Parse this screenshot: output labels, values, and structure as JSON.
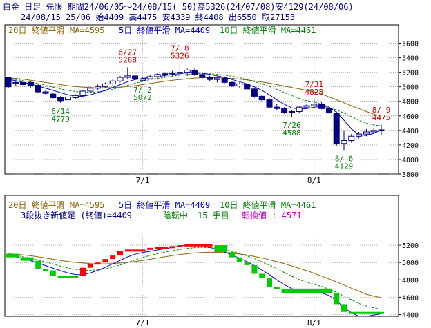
{
  "header": {
    "line1": "白金 日足 先限 期間24/06/05～24/08/15( 50)高5326(24/07/08)安4129(24/08/06)",
    "line2": "24/08/15 25/06 始4409 高4475 安4339 終4408 出6550 取27153"
  },
  "colors": {
    "ma20": "#8b6508",
    "ma5": "#0000cc",
    "ma10": "#008000",
    "candle_down": "#000080",
    "label_high": "#cc0000",
    "label_low": "#008000",
    "brick_up": "#ff0000",
    "brick_down": "#00cc00",
    "grid": "#808080",
    "panel_border": "#000000"
  },
  "chart_data": [
    {
      "type": "candlestick",
      "legend": {
        "ma20": "20日 終値平滑 MA=4595",
        "ma5": "5日 終値平滑 MA=4409",
        "ma10": "10日 終値平滑 MA=4461"
      },
      "ylim": [
        3800,
        5700
      ],
      "yticks": [
        3800,
        4000,
        4200,
        4400,
        4600,
        4800,
        5000,
        5200,
        5400,
        5600
      ],
      "xtick_labels": [
        {
          "index": 18,
          "label": "7/1"
        },
        {
          "index": 41,
          "label": "8/1"
        }
      ],
      "candles": [
        {
          "o": 5130,
          "h": 5135,
          "l": 4980,
          "c": 5000
        },
        {
          "o": 5050,
          "h": 5080,
          "l": 5010,
          "c": 5060
        },
        {
          "o": 5060,
          "h": 5070,
          "l": 5010,
          "c": 5030
        },
        {
          "o": 5060,
          "h": 5070,
          "l": 4990,
          "c": 5020
        },
        {
          "o": 5020,
          "h": 5040,
          "l": 4920,
          "c": 4930
        },
        {
          "o": 4930,
          "h": 4960,
          "l": 4890,
          "c": 4910
        },
        {
          "o": 4900,
          "h": 4920,
          "l": 4840,
          "c": 4850
        },
        {
          "o": 4850,
          "h": 4870,
          "l": 4779,
          "c": 4810
        },
        {
          "o": 4820,
          "h": 4870,
          "l": 4800,
          "c": 4860
        },
        {
          "o": 4850,
          "h": 4900,
          "l": 4830,
          "c": 4880
        },
        {
          "o": 4880,
          "h": 4960,
          "l": 4870,
          "c": 4940
        },
        {
          "o": 4940,
          "h": 5000,
          "l": 4920,
          "c": 4980
        },
        {
          "o": 4980,
          "h": 5030,
          "l": 4960,
          "c": 5000
        },
        {
          "o": 5000,
          "h": 5060,
          "l": 4980,
          "c": 5040
        },
        {
          "o": 5040,
          "h": 5100,
          "l": 5020,
          "c": 5080
        },
        {
          "o": 5080,
          "h": 5150,
          "l": 5060,
          "c": 5130
        },
        {
          "o": 5130,
          "h": 5268,
          "l": 5100,
          "c": 5150
        },
        {
          "o": 5150,
          "h": 5200,
          "l": 5090,
          "c": 5110
        },
        {
          "o": 5090,
          "h": 5130,
          "l": 5072,
          "c": 5110
        },
        {
          "o": 5110,
          "h": 5160,
          "l": 5100,
          "c": 5140
        },
        {
          "o": 5140,
          "h": 5190,
          "l": 5120,
          "c": 5170
        },
        {
          "o": 5170,
          "h": 5200,
          "l": 5140,
          "c": 5180
        },
        {
          "o": 5180,
          "h": 5220,
          "l": 5150,
          "c": 5190
        },
        {
          "o": 5190,
          "h": 5326,
          "l": 5170,
          "c": 5200
        },
        {
          "o": 5200,
          "h": 5250,
          "l": 5150,
          "c": 5230
        },
        {
          "o": 5230,
          "h": 5260,
          "l": 5150,
          "c": 5170
        },
        {
          "o": 5170,
          "h": 5200,
          "l": 5100,
          "c": 5130
        },
        {
          "o": 5130,
          "h": 5150,
          "l": 5080,
          "c": 5100
        },
        {
          "o": 5100,
          "h": 5140,
          "l": 5060,
          "c": 5120
        },
        {
          "o": 5120,
          "h": 5140,
          "l": 5050,
          "c": 5060
        },
        {
          "o": 5060,
          "h": 5080,
          "l": 5000,
          "c": 5010
        },
        {
          "o": 5010,
          "h": 5060,
          "l": 4990,
          "c": 5040
        },
        {
          "o": 5040,
          "h": 5050,
          "l": 4960,
          "c": 4970
        },
        {
          "o": 4970,
          "h": 4990,
          "l": 4850,
          "c": 4870
        },
        {
          "o": 4870,
          "h": 4900,
          "l": 4800,
          "c": 4820
        },
        {
          "o": 4820,
          "h": 4840,
          "l": 4700,
          "c": 4720
        },
        {
          "o": 4720,
          "h": 4760,
          "l": 4680,
          "c": 4700
        },
        {
          "o": 4700,
          "h": 4720,
          "l": 4630,
          "c": 4650
        },
        {
          "o": 4650,
          "h": 4680,
          "l": 4588,
          "c": 4660
        },
        {
          "o": 4660,
          "h": 4730,
          "l": 4640,
          "c": 4720
        },
        {
          "o": 4720,
          "h": 4770,
          "l": 4700,
          "c": 4740
        },
        {
          "o": 4740,
          "h": 4828,
          "l": 4720,
          "c": 4760
        },
        {
          "o": 4760,
          "h": 4790,
          "l": 4690,
          "c": 4700
        },
        {
          "o": 4700,
          "h": 4720,
          "l": 4620,
          "c": 4640
        },
        {
          "o": 4640,
          "h": 4660,
          "l": 4180,
          "c": 4220
        },
        {
          "o": 4220,
          "h": 4400,
          "l": 4129,
          "c": 4260
        },
        {
          "o": 4260,
          "h": 4350,
          "l": 4230,
          "c": 4320
        },
        {
          "o": 4320,
          "h": 4380,
          "l": 4290,
          "c": 4350
        },
        {
          "o": 4350,
          "h": 4420,
          "l": 4320,
          "c": 4380
        },
        {
          "o": 4380,
          "h": 4430,
          "l": 4360,
          "c": 4400
        },
        {
          "o": 4400,
          "h": 4475,
          "l": 4339,
          "c": 4408
        }
      ],
      "ma20_values": [
        5120,
        5115,
        5105,
        5090,
        5075,
        5060,
        5045,
        5030,
        5015,
        5005,
        4995,
        4990,
        4985,
        4985,
        4990,
        4995,
        5005,
        5015,
        5030,
        5045,
        5060,
        5075,
        5090,
        5100,
        5110,
        5120,
        5125,
        5125,
        5125,
        5120,
        5115,
        5105,
        5095,
        5080,
        5065,
        5050,
        5030,
        5010,
        4990,
        4970,
        4950,
        4930,
        4900,
        4860,
        4820,
        4780,
        4740,
        4700,
        4660,
        4625,
        4595
      ],
      "ma5_values": [
        5100,
        5085,
        5060,
        5040,
        5010,
        4980,
        4950,
        4920,
        4890,
        4870,
        4870,
        4890,
        4920,
        4950,
        4990,
        5030,
        5070,
        5100,
        5115,
        5130,
        5140,
        5155,
        5170,
        5180,
        5195,
        5200,
        5190,
        5170,
        5150,
        5130,
        5100,
        5070,
        5040,
        5000,
        4950,
        4890,
        4820,
        4760,
        4710,
        4690,
        4700,
        4720,
        4730,
        4720,
        4650,
        4540,
        4420,
        4340,
        4330,
        4360,
        4409
      ],
      "ma10_values": [
        5110,
        5100,
        5085,
        5065,
        5045,
        5020,
        4995,
        4970,
        4950,
        4935,
        4925,
        4925,
        4930,
        4945,
        4965,
        4990,
        5020,
        5050,
        5075,
        5100,
        5115,
        5130,
        5145,
        5160,
        5170,
        5180,
        5185,
        5180,
        5170,
        5160,
        5145,
        5125,
        5100,
        5070,
        5040,
        5005,
        4965,
        4920,
        4880,
        4840,
        4810,
        4790,
        4760,
        4720,
        4680,
        4640,
        4590,
        4540,
        4500,
        4475,
        4461
      ],
      "annotations": [
        {
          "index": 7,
          "value": 4779,
          "date": "6/14",
          "price": "4779",
          "kind": "low"
        },
        {
          "index": 16,
          "value": 5268,
          "date": "6/27",
          "price": "5268",
          "kind": "high"
        },
        {
          "index": 18,
          "value": 5072,
          "date": "7/ 2",
          "price": "5072",
          "kind": "low"
        },
        {
          "index": 23,
          "value": 5326,
          "date": "7/ 8",
          "price": "5326",
          "kind": "high"
        },
        {
          "index": 38,
          "value": 4588,
          "date": "7/26",
          "price": "4588",
          "kind": "low"
        },
        {
          "index": 41,
          "value": 4828,
          "date": "7/31",
          "price": "4828",
          "kind": "high"
        },
        {
          "index": 45,
          "value": 4129,
          "date": "8/ 6",
          "price": "4129",
          "kind": "low"
        },
        {
          "index": 50,
          "value": 4475,
          "date": "8/ 9",
          "price": "4475",
          "kind": "high"
        }
      ]
    },
    {
      "type": "three-line-break",
      "legend": {
        "ma20": "20日 終値平滑 MA=4595",
        "ma5": "5日 終値平滑 MA=4409",
        "ma10": "10日 終値平滑 MA=4461",
        "title": "3段抜き新値足 (終値)=4409",
        "trend": "陰転中",
        "steps": "15 手目",
        "reversal": "転換値 : 4571"
      },
      "ylim": [
        4380,
        5320
      ],
      "yticks": [
        4400,
        4600,
        4800,
        5000,
        5200
      ],
      "xtick_labels": [
        {
          "index": 18,
          "label": "7/1"
        },
        {
          "index": 41,
          "label": "8/1"
        }
      ],
      "bricks": [
        {
          "s": 0,
          "e": 2,
          "top": 5100,
          "bot": 5060,
          "dir": "down"
        },
        {
          "s": 2,
          "e": 4,
          "top": 5060,
          "bot": 5020,
          "dir": "down"
        },
        {
          "s": 4,
          "e": 5,
          "top": 5020,
          "bot": 4930,
          "dir": "down"
        },
        {
          "s": 5,
          "e": 6,
          "top": 4930,
          "bot": 4910,
          "dir": "down"
        },
        {
          "s": 6,
          "e": 7,
          "top": 4910,
          "bot": 4850,
          "dir": "down"
        },
        {
          "s": 7,
          "e": 10,
          "top": 4850,
          "bot": 4835,
          "dir": "down"
        },
        {
          "s": 10,
          "e": 11,
          "top": 4940,
          "bot": 4850,
          "dir": "up"
        },
        {
          "s": 11,
          "e": 12,
          "top": 4980,
          "bot": 4940,
          "dir": "up"
        },
        {
          "s": 12,
          "e": 13,
          "top": 5000,
          "bot": 4980,
          "dir": "up"
        },
        {
          "s": 13,
          "e": 14,
          "top": 5040,
          "bot": 5000,
          "dir": "up"
        },
        {
          "s": 14,
          "e": 15,
          "top": 5080,
          "bot": 5040,
          "dir": "up"
        },
        {
          "s": 15,
          "e": 16,
          "top": 5130,
          "bot": 5080,
          "dir": "up"
        },
        {
          "s": 16,
          "e": 19,
          "top": 5150,
          "bot": 5130,
          "dir": "up"
        },
        {
          "s": 19,
          "e": 20,
          "top": 5170,
          "bot": 5150,
          "dir": "up"
        },
        {
          "s": 20,
          "e": 22,
          "top": 5180,
          "bot": 5170,
          "dir": "up"
        },
        {
          "s": 22,
          "e": 23,
          "top": 5190,
          "bot": 5180,
          "dir": "up"
        },
        {
          "s": 23,
          "e": 24,
          "top": 5200,
          "bot": 5190,
          "dir": "up"
        },
        {
          "s": 24,
          "e": 28,
          "top": 5210,
          "bot": 5200,
          "dir": "up"
        },
        {
          "s": 28,
          "e": 30,
          "top": 5200,
          "bot": 5120,
          "dir": "down"
        },
        {
          "s": 30,
          "e": 31,
          "top": 5120,
          "bot": 5060,
          "dir": "down"
        },
        {
          "s": 31,
          "e": 32,
          "top": 5060,
          "bot": 5010,
          "dir": "down"
        },
        {
          "s": 32,
          "e": 33,
          "top": 5010,
          "bot": 4970,
          "dir": "down"
        },
        {
          "s": 33,
          "e": 34,
          "top": 4970,
          "bot": 4870,
          "dir": "down"
        },
        {
          "s": 34,
          "e": 35,
          "top": 4870,
          "bot": 4820,
          "dir": "down"
        },
        {
          "s": 35,
          "e": 36,
          "top": 4820,
          "bot": 4720,
          "dir": "down"
        },
        {
          "s": 36,
          "e": 37,
          "top": 4720,
          "bot": 4700,
          "dir": "down"
        },
        {
          "s": 37,
          "e": 44,
          "top": 4700,
          "bot": 4650,
          "dir": "down"
        },
        {
          "s": 44,
          "e": 45,
          "top": 4650,
          "bot": 4520,
          "dir": "down"
        },
        {
          "s": 45,
          "e": 46,
          "top": 4520,
          "bot": 4430,
          "dir": "down"
        },
        {
          "s": 46,
          "e": 51,
          "top": 4430,
          "bot": 4408,
          "dir": "down"
        }
      ],
      "ma20_values": [
        5100,
        5095,
        5088,
        5078,
        5066,
        5052,
        5038,
        5024,
        5012,
        5002,
        4994,
        4988,
        4985,
        4985,
        4988,
        4994,
        5002,
        5012,
        5024,
        5038,
        5052,
        5066,
        5080,
        5092,
        5102,
        5110,
        5116,
        5118,
        5118,
        5114,
        5108,
        5098,
        5086,
        5070,
        5052,
        5032,
        5010,
        4986,
        4960,
        4934,
        4906,
        4876,
        4844,
        4810,
        4776,
        4740,
        4704,
        4668,
        4634,
        4612,
        4595
      ],
      "ma5_values": [
        5080,
        5065,
        5045,
        5020,
        4995,
        4965,
        4935,
        4905,
        4880,
        4860,
        4860,
        4880,
        4910,
        4945,
        4985,
        5025,
        5065,
        5095,
        5115,
        5130,
        5145,
        5160,
        5175,
        5190,
        5200,
        5205,
        5195,
        5175,
        5150,
        5120,
        5085,
        5050,
        5010,
        4965,
        4915,
        4860,
        4800,
        4745,
        4700,
        4670,
        4660,
        4660,
        4650,
        4620,
        4560,
        4480,
        4420,
        4380,
        4380,
        4395,
        4409
      ],
      "ma10_values": [
        5090,
        5080,
        5066,
        5048,
        5028,
        5006,
        4982,
        4958,
        4938,
        4922,
        4912,
        4910,
        4915,
        4928,
        4948,
        4972,
        5000,
        5030,
        5058,
        5082,
        5102,
        5120,
        5136,
        5150,
        5162,
        5172,
        5176,
        5172,
        5162,
        5148,
        5128,
        5104,
        5076,
        5044,
        5008,
        4970,
        4928,
        4884,
        4842,
        4804,
        4772,
        4748,
        4724,
        4692,
        4656,
        4614,
        4570,
        4528,
        4498,
        4476,
        4461
      ]
    }
  ]
}
